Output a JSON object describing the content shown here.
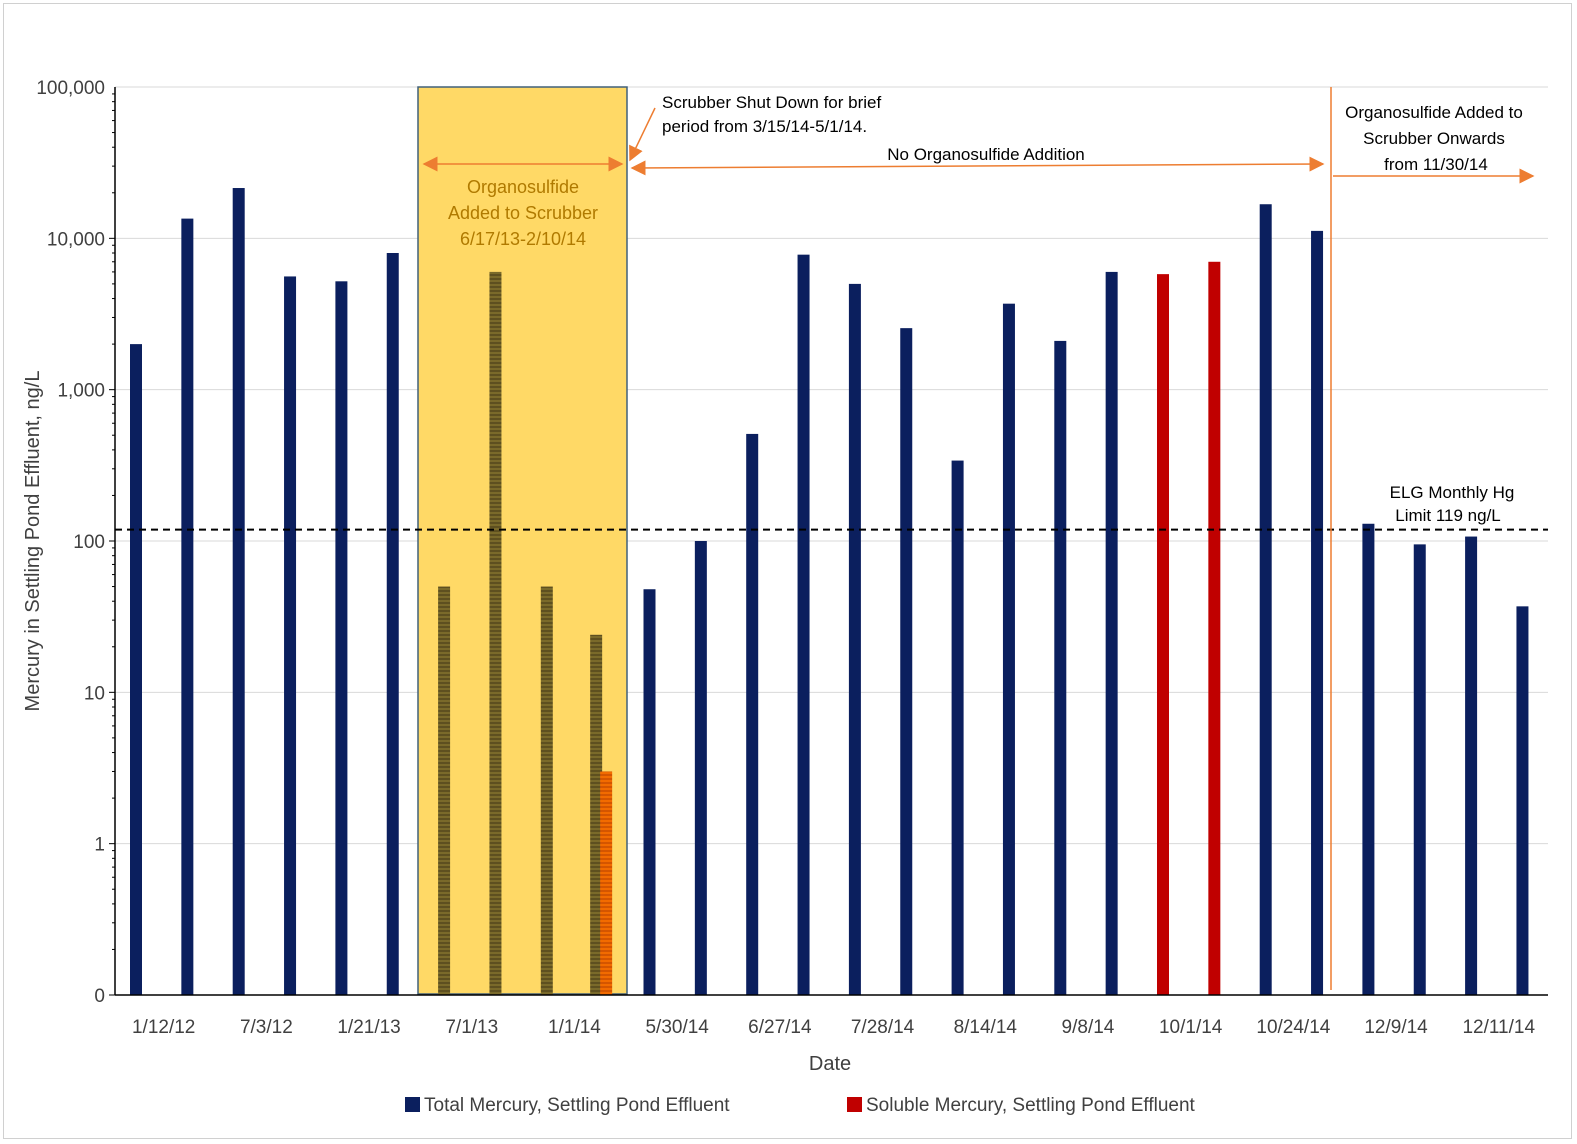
{
  "chart_data": {
    "type": "bar",
    "scale_y": "log",
    "ylabel": "Mercury in Settling Pond Effluent, ng/L",
    "xlabel": "Date",
    "y_ticks": [
      "0",
      "1",
      "10",
      "100",
      "1,000",
      "10,000",
      "100,000"
    ],
    "x_tick_labels": [
      "1/12/12",
      "7/3/12",
      "1/21/13",
      "7/1/13",
      "1/1/14",
      "5/30/14",
      "6/27/14",
      "7/28/14",
      "8/14/14",
      "9/8/14",
      "10/1/14",
      "10/24/14",
      "12/9/14",
      "12/11/14"
    ],
    "series": [
      {
        "name": "Total Mercury, Settling Pond Effluent",
        "color": "#0b1f5e"
      },
      {
        "name": "Soluble Mercury, Settling Pond Effluent",
        "color": "#c00000"
      }
    ],
    "bars": [
      {
        "i": 0,
        "series": 0,
        "value": 2000
      },
      {
        "i": 1,
        "series": 0,
        "value": 13500
      },
      {
        "i": 2,
        "series": 0,
        "value": 21500
      },
      {
        "i": 3,
        "series": 0,
        "value": 5600
      },
      {
        "i": 4,
        "series": 0,
        "value": 5200
      },
      {
        "i": 5,
        "series": 0,
        "value": 8000
      },
      {
        "i": 6,
        "series": 0,
        "value": 50
      },
      {
        "i": 7,
        "series": 0,
        "value": 6000
      },
      {
        "i": 8,
        "series": 0,
        "value": 50
      },
      {
        "i": 9,
        "series": 0,
        "value": 24
      },
      {
        "i": 9,
        "series": 1,
        "value": 3
      },
      {
        "i": 10,
        "series": 0,
        "value": 48
      },
      {
        "i": 11,
        "series": 0,
        "value": 100
      },
      {
        "i": 12,
        "series": 0,
        "value": 510
      },
      {
        "i": 13,
        "series": 0,
        "value": 7800
      },
      {
        "i": 14,
        "series": 0,
        "value": 5000
      },
      {
        "i": 15,
        "series": 0,
        "value": 2550
      },
      {
        "i": 16,
        "series": 0,
        "value": 340
      },
      {
        "i": 17,
        "series": 0,
        "value": 3700
      },
      {
        "i": 18,
        "series": 0,
        "value": 2100
      },
      {
        "i": 19,
        "series": 0,
        "value": 6000
      },
      {
        "i": 20,
        "series": 1,
        "value": 5800
      },
      {
        "i": 21,
        "series": 1,
        "value": 7000
      },
      {
        "i": 22,
        "series": 0,
        "value": 16800
      },
      {
        "i": 23,
        "series": 0,
        "value": 11200
      },
      {
        "i": 24,
        "series": 0,
        "value": 130
      },
      {
        "i": 25,
        "series": 0,
        "value": 95
      },
      {
        "i": 26,
        "series": 0,
        "value": 107
      },
      {
        "i": 27,
        "series": 0,
        "value": 37
      }
    ],
    "reference_line": {
      "value": 119,
      "label": [
        "ELG Monthly Hg",
        "Limit 119 ng/L"
      ]
    },
    "highlight_box": {
      "label": [
        "Organosulfide",
        "Added to Scrubber",
        "6/17/13-2/10/14"
      ],
      "color": "#ffd966"
    },
    "annotations": {
      "shutdown": [
        "Scrubber Shut Down for brief",
        "period from 3/15/14-5/1/14."
      ],
      "no_addition": "No Organosulfide Addition",
      "onwards": [
        "Organosulfide Added to",
        "Scrubber Onwards",
        "from 11/30/14"
      ]
    },
    "legend_position": "bottom",
    "grid": true
  }
}
